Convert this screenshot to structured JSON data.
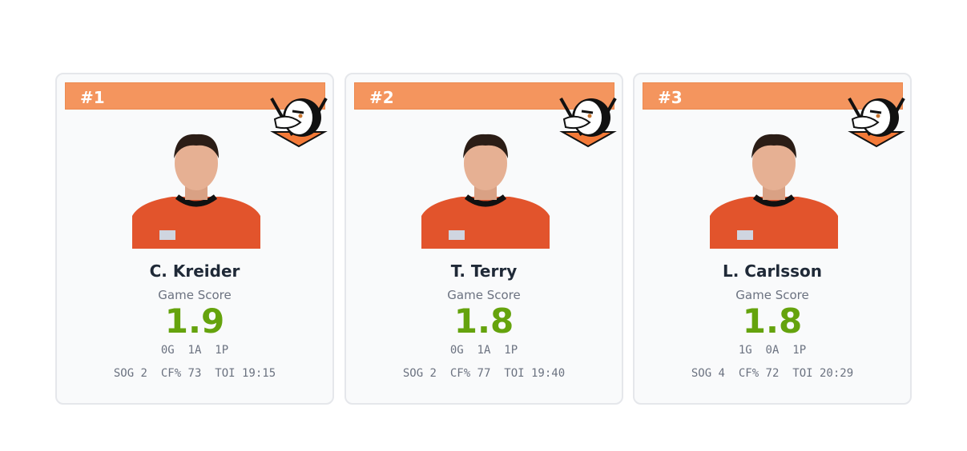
{
  "cards": [
    {
      "rank": "#1",
      "name": "C. Kreider",
      "metric_label": "Game Score",
      "score": 1.9,
      "line1": "0G  1A  1P",
      "line2": "SOG 2  CF% 73  TOI 19:15"
    },
    {
      "rank": "#2",
      "name": "T. Terry",
      "metric_label": "Game Score",
      "score": 1.8,
      "line1": "0G  1A  1P",
      "line2": "SOG 2  CF% 77  TOI 19:40"
    },
    {
      "rank": "#3",
      "name": "L. Carlsson",
      "metric_label": "Game Score",
      "score": 1.8,
      "line1": "1G  0A  1P",
      "line2": "SOG 4  CF% 72  TOI 20:29"
    }
  ]
}
